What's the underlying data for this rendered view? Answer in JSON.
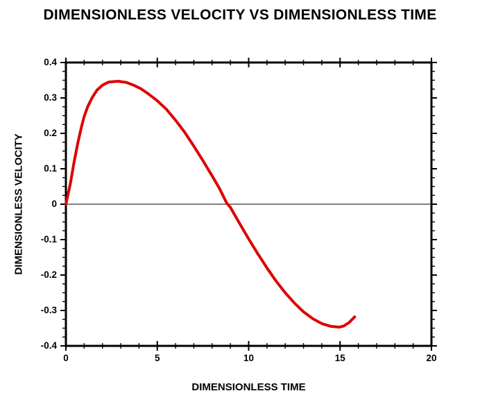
{
  "colors": {
    "background": "#ffffff",
    "axis": "#000000",
    "text": "#000000",
    "curve": "#dd0000"
  },
  "chart_data": {
    "type": "line",
    "title": "DIMENSIONLESS VELOCITY VS DIMENSIONLESS TIME",
    "xlabel": "DIMENSIONLESS TIME",
    "ylabel": "DIMENSIONLESS VELOCITY",
    "xlim": [
      0,
      20
    ],
    "ylim": [
      -0.4,
      0.4
    ],
    "x_major_ticks": [
      0,
      5,
      10,
      15,
      20
    ],
    "x_tick_labels": [
      "0",
      "5",
      "10",
      "15",
      "20"
    ],
    "x_minor_step": 1,
    "y_major_ticks": [
      0.4,
      0.3,
      0.2,
      0.1,
      0,
      -0.1,
      -0.2,
      -0.3,
      -0.4
    ],
    "y_tick_labels": [
      "0.4",
      "0.3",
      "0.2",
      "0.1",
      "0",
      "-0.1",
      "-0.2",
      "-0.3",
      "-0.4"
    ],
    "y_minor_step": 0.025,
    "grid": false,
    "zero_line_y": 0,
    "legend_position": "none",
    "frame": "full-box",
    "series": [
      {
        "name": "dimensionless velocity",
        "color": "#dd0000",
        "line_width": 4,
        "points": [
          [
            0.0,
            0.0
          ],
          [
            0.25,
            0.06
          ],
          [
            0.45,
            0.12
          ],
          [
            0.65,
            0.172
          ],
          [
            0.85,
            0.218
          ],
          [
            1.0,
            0.248
          ],
          [
            1.2,
            0.276
          ],
          [
            1.45,
            0.302
          ],
          [
            1.7,
            0.322
          ],
          [
            2.0,
            0.336
          ],
          [
            2.35,
            0.345
          ],
          [
            2.85,
            0.347
          ],
          [
            3.3,
            0.344
          ],
          [
            3.7,
            0.336
          ],
          [
            4.1,
            0.326
          ],
          [
            4.5,
            0.312
          ],
          [
            5.0,
            0.292
          ],
          [
            5.5,
            0.268
          ],
          [
            6.0,
            0.237
          ],
          [
            6.5,
            0.203
          ],
          [
            7.0,
            0.164
          ],
          [
            7.5,
            0.123
          ],
          [
            8.0,
            0.08
          ],
          [
            8.4,
            0.045
          ],
          [
            8.8,
            0.003
          ],
          [
            9.0,
            -0.009
          ],
          [
            9.5,
            -0.054
          ],
          [
            10.0,
            -0.098
          ],
          [
            10.5,
            -0.14
          ],
          [
            11.0,
            -0.18
          ],
          [
            11.5,
            -0.217
          ],
          [
            12.0,
            -0.25
          ],
          [
            12.5,
            -0.279
          ],
          [
            13.0,
            -0.304
          ],
          [
            13.5,
            -0.323
          ],
          [
            14.0,
            -0.337
          ],
          [
            14.5,
            -0.345
          ],
          [
            14.95,
            -0.347
          ],
          [
            15.2,
            -0.344
          ],
          [
            15.5,
            -0.334
          ],
          [
            15.8,
            -0.318
          ]
        ]
      }
    ]
  }
}
